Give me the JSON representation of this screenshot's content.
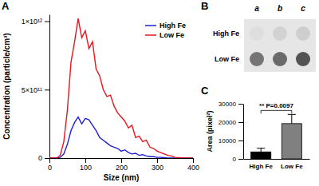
{
  "chart_data": [
    {
      "type": "line",
      "title": "A",
      "x_label": "Size (nm)",
      "y_label": "Concentration (particle/cm³)",
      "x": [
        0,
        10,
        20,
        30,
        40,
        50,
        60,
        70,
        80,
        90,
        100,
        110,
        120,
        130,
        140,
        150,
        160,
        170,
        180,
        190,
        200,
        210,
        220,
        230,
        240,
        250,
        260,
        270,
        280,
        290,
        300,
        310,
        320,
        330,
        340,
        350,
        360,
        370,
        380,
        390,
        400
      ],
      "series": [
        {
          "name": "High Fe",
          "color": "#1f1fd6",
          "values": [
            0,
            0,
            0,
            5000000000.0,
            30000000000.0,
            100000000000.0,
            200000000000.0,
            260000000000.0,
            300000000000.0,
            250000000000.0,
            290000000000.0,
            280000000000.0,
            240000000000.0,
            200000000000.0,
            150000000000.0,
            130000000000.0,
            110000000000.0,
            90000000000.0,
            80000000000.0,
            70000000000.0,
            50000000000.0,
            60000000000.0,
            40000000000.0,
            30000000000.0,
            35000000000.0,
            20000000000.0,
            25000000000.0,
            15000000000.0,
            10000000000.0,
            10000000000.0,
            5000000000.0,
            5000000000.0,
            3000000000.0,
            0,
            0,
            0,
            0,
            0,
            0,
            0,
            0
          ]
        },
        {
          "name": "Low Fe",
          "color": "#e8141e",
          "values": [
            0,
            0,
            0,
            20000000000.0,
            120000000000.0,
            350000000000.0,
            700000000000.0,
            850000000000.0,
            1020000000000.0,
            880000000000.0,
            930000000000.0,
            800000000000.0,
            850000000000.0,
            650000000000.0,
            600000000000.0,
            500000000000.0,
            450000000000.0,
            460000000000.0,
            380000000000.0,
            330000000000.0,
            300000000000.0,
            270000000000.0,
            220000000000.0,
            240000000000.0,
            150000000000.0,
            160000000000.0,
            120000000000.0,
            130000000000.0,
            80000000000.0,
            70000000000.0,
            50000000000.0,
            40000000000.0,
            30000000000.0,
            20000000000.0,
            15000000000.0,
            5000000000.0,
            3000000000.0,
            0,
            0,
            0,
            0
          ]
        }
      ],
      "xlim": [
        0,
        400
      ],
      "xticks": [
        0,
        100,
        200,
        300,
        400
      ],
      "ylim": [
        0,
        1050000000000.0
      ],
      "yticks": [
        0,
        {
          "value": 500000000000.0,
          "label": "5×10¹¹"
        },
        {
          "value": 1000000000000.0,
          "label": "1×10¹²"
        }
      ],
      "legend": "upper right"
    },
    {
      "type": "dot_blot",
      "title": "B",
      "columns": [
        "a",
        "b",
        "c"
      ],
      "rows": [
        "High Fe",
        "Low Fe"
      ],
      "cells": [
        [
          0.22,
          0.28,
          0.3
        ],
        [
          0.62,
          0.66,
          0.74
        ]
      ]
    },
    {
      "type": "bar",
      "title": "C",
      "y_label": "Area (pixel²)",
      "categories": [
        "High Fe",
        "Low Fe"
      ],
      "values": [
        3800,
        19200
      ],
      "errors": [
        2000,
        5000
      ],
      "colors": [
        "#000000",
        "#808080"
      ],
      "ylim": [
        0,
        30000
      ],
      "yticks": [
        0,
        10000,
        20000,
        30000
      ],
      "annotation": "** P=0.0097"
    }
  ]
}
